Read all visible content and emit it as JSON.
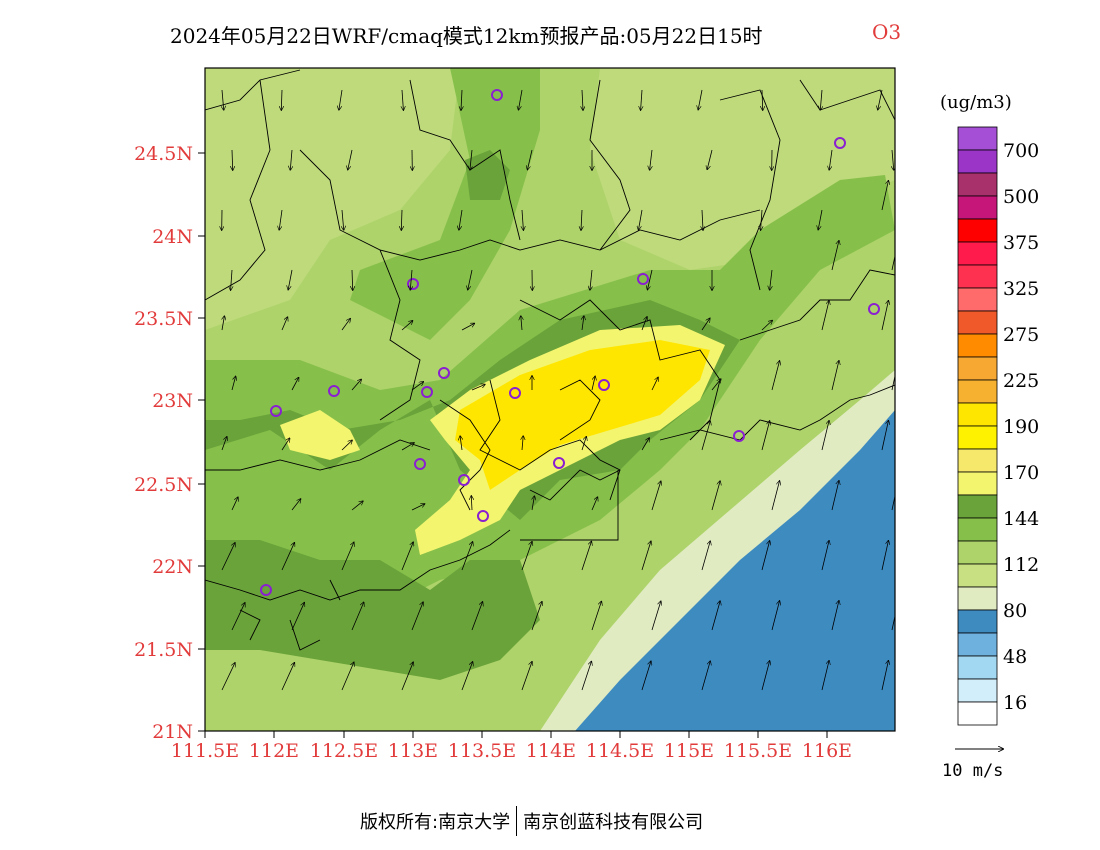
{
  "title": {
    "text": "2024年05月22日WRF/cmaq模式12km预报产品:05月22日15时",
    "species": "O3"
  },
  "footer": {
    "copyright": "版权所有:南京大学",
    "company": "南京创蓝科技有限公司"
  },
  "map": {
    "lat_ticks": [
      "24.5N",
      "24N",
      "23.5N",
      "23N",
      "22.5N",
      "22N",
      "21.5N",
      "21N"
    ],
    "lon_ticks": [
      "111.5E",
      "112E",
      "112.5E",
      "113E",
      "113.5E",
      "114E",
      "114.5E",
      "115E",
      "115.5E",
      "116E"
    ],
    "tick_color": "#e23b3b"
  },
  "colorbar": {
    "units": "(ug/m3)",
    "labels": [
      "700",
      "500",
      "375",
      "325",
      "275",
      "225",
      "190",
      "170",
      "144",
      "112",
      "80",
      "48",
      "16"
    ],
    "colors": [
      "#a54fd6",
      "#9b35c8",
      "#a8306b",
      "#c7167a",
      "#ff0000",
      "#ff1b4b",
      "#ff3150",
      "#ff6a6a",
      "#f05a2a",
      "#ff8c00",
      "#f7a832",
      "#f6b130",
      "#ffe600",
      "#fff200",
      "#f5e86a",
      "#f3f56f",
      "#6aa33a",
      "#86c04a",
      "#aed36a",
      "#c8e082",
      "#e0ebc2",
      "#3e8bc0",
      "#6fb1de",
      "#a3d8f2",
      "#d2eefa",
      "#ffffff"
    ]
  },
  "wind": {
    "reference_label": "10 m/s"
  }
}
